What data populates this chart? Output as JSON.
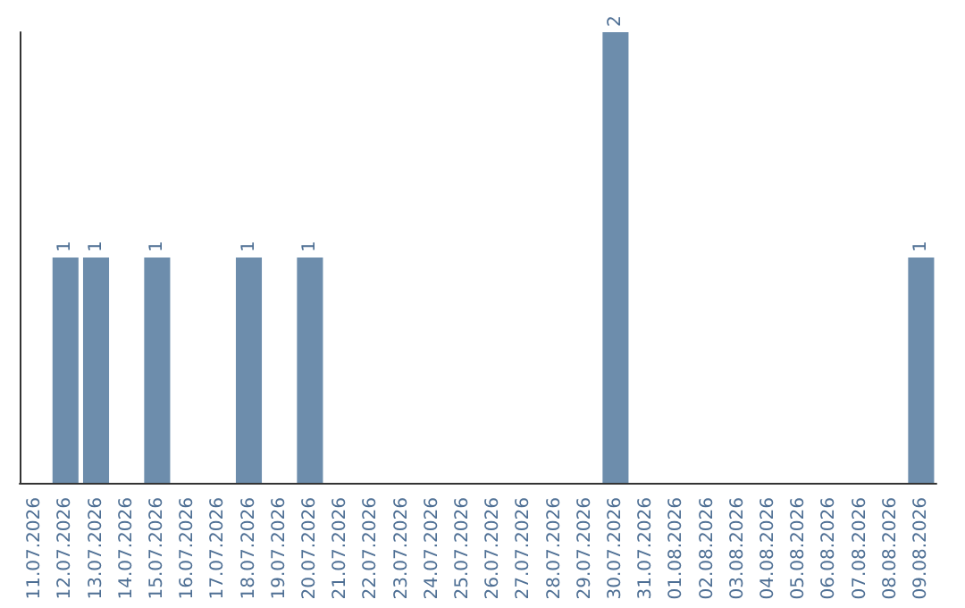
{
  "chart_data": {
    "type": "bar",
    "categories": [
      "11.07.2026",
      "12.07.2026",
      "13.07.2026",
      "14.07.2026",
      "15.07.2026",
      "16.07.2026",
      "17.07.2026",
      "18.07.2026",
      "19.07.2026",
      "20.07.2026",
      "21.07.2026",
      "22.07.2026",
      "23.07.2026",
      "24.07.2026",
      "25.07.2026",
      "26.07.2026",
      "27.07.2026",
      "28.07.2026",
      "29.07.2026",
      "30.07.2026",
      "31.07.2026",
      "01.08.2026",
      "02.08.2026",
      "03.08.2026",
      "04.08.2026",
      "05.08.2026",
      "06.08.2026",
      "07.08.2026",
      "08.08.2026",
      "09.08.2026"
    ],
    "values": [
      0,
      1,
      1,
      0,
      1,
      0,
      0,
      1,
      0,
      1,
      0,
      0,
      0,
      0,
      0,
      0,
      0,
      0,
      0,
      2,
      0,
      0,
      0,
      0,
      0,
      0,
      0,
      0,
      0,
      1
    ],
    "value_labels": [
      null,
      "1",
      "1",
      null,
      "1",
      null,
      null,
      "1",
      null,
      "1",
      null,
      null,
      null,
      null,
      null,
      null,
      null,
      null,
      null,
      "2",
      null,
      null,
      null,
      null,
      null,
      null,
      null,
      null,
      null,
      "1"
    ],
    "color": "#6d8dac",
    "tick_labels": "x"
  }
}
